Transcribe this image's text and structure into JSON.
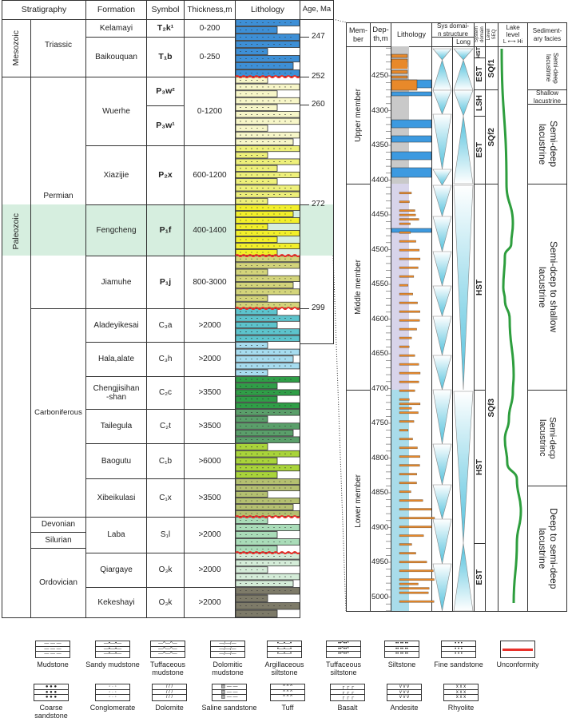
{
  "left_table": {
    "headers": {
      "stratigraphy": "Stratigraphy",
      "formation": "Formation",
      "symbol": "Symbol",
      "thickness": "Thickness,m",
      "lithology": "Lithology",
      "age": "Age, Ma"
    },
    "eras": [
      "Mesozoic",
      "Paleozoic"
    ],
    "periods": [
      "Triassic",
      "Permian",
      "Carboniferous",
      "Devonian",
      "Silurian",
      "Ordovician"
    ],
    "formations": [
      {
        "name": "Kelamayi",
        "symbol": "T₂k¹",
        "thickness": "0-200"
      },
      {
        "name": "Baikouquan",
        "symbol": "T₁b",
        "thickness": "0-250"
      },
      {
        "name": "Wuerhe",
        "symbols": [
          "P₃w²",
          "P₃w¹"
        ],
        "thickness": "0-1200"
      },
      {
        "name": "Xiazijie",
        "symbol": "P₂x",
        "thickness": "600-1200"
      },
      {
        "name": "Fengcheng",
        "symbol": "P₁f",
        "thickness": "400-1400"
      },
      {
        "name": "Jiamuhe",
        "symbol": "P₁j",
        "thickness": "800-3000"
      },
      {
        "name": "Aladeyikesai",
        "symbol": "C₃a",
        "thickness": ">2000"
      },
      {
        "name": "Hala,alate",
        "symbol": "C₃h",
        "thickness": ">2000"
      },
      {
        "name": "Chengjisihan\n-shan",
        "symbol": "C₂c",
        "thickness": ">3500"
      },
      {
        "name": "Tailegula",
        "symbol": "C₂t",
        "thickness": ">3500"
      },
      {
        "name": "Baogutu",
        "symbol": "C₁b",
        "thickness": ">6000"
      },
      {
        "name": "Xibeikulasi",
        "symbol": "C₁x",
        "thickness": ">3500"
      },
      {
        "name": "Laba",
        "symbol": "S₁l",
        "thickness": ">2000"
      },
      {
        "name": "Qiargaye",
        "symbol": "O₃k",
        "thickness": ">2000"
      },
      {
        "name": "Kekeshayi",
        "symbol": "O₃k",
        "thickness": ">2000"
      }
    ],
    "ages": [
      "247",
      "252",
      "260",
      "272",
      "299"
    ],
    "highlight_color": "#d6eedf"
  },
  "right_panel": {
    "headers": {
      "member": "Mem-\nber",
      "depth": "Dep-\nth,m",
      "lithology": "Lithology",
      "sys_domain": "Sys domai-\nn structure",
      "long": "Long",
      "system_domain": "System\ndomain",
      "seq": "Level\nSEQ",
      "lake_level": "Lake\nlevel",
      "lake_scale": "L ⟷ Hi",
      "facies": "Sediment-\nary facies"
    },
    "members": [
      "Upper member",
      "Middle member",
      "Lower member"
    ],
    "depths": [
      "4250",
      "4300",
      "4350",
      "4400",
      "4450",
      "4500",
      "4550",
      "4600",
      "4650",
      "4700",
      "4750",
      "4800",
      "4850",
      "4900",
      "4950",
      "5000"
    ],
    "system_tracts": [
      "HST",
      "EST",
      "LSH",
      "EST",
      "HST",
      "HST",
      "EST"
    ],
    "sequences": [
      "SQf1",
      "SQf2",
      "SQf3"
    ],
    "facies": [
      "Semi-deep lacustrine",
      "Shallow lacustrine",
      "Semi-deep lacustrine",
      "Semi-dcep to shallow lacustrine",
      "Semi-decp lacustrinc",
      "Deep to semi-deep lacustrine"
    ],
    "lake_curve_color": "#2e9e3e"
  },
  "legend": [
    "Mudstone",
    "Sandy mudstone",
    "Tuffaceous mudstone",
    "Dolomitic mudstone",
    "Argillaceous siltstone",
    "Tuffaceous siltstone",
    "Siltstone",
    "Fine sandstone",
    "Unconformity",
    "Coarse sandstone",
    "Conglomerate",
    "Dolomite",
    "Saline sandstone",
    "Tuff",
    "Basalt",
    "Andesite",
    "Rhyolite"
  ]
}
